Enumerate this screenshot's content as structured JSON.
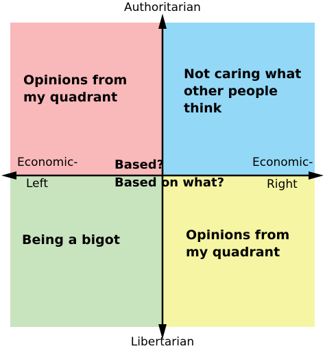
{
  "diagram": {
    "axis_labels": {
      "top": "Authoritarian",
      "bottom": "Libertarian",
      "left_line1": "Economic-",
      "left_line2": "Left",
      "right_line1": "Economic-",
      "right_line2": "Right"
    },
    "quadrants": {
      "top_left": {
        "line1": "Opinions from",
        "line2": "my quadrant",
        "color": "#f9b8b9"
      },
      "top_right": {
        "line1": "Not caring what",
        "line2": "other people",
        "line3": "think",
        "color": "#93d8f7"
      },
      "bottom_left": {
        "line1": "Being a bigot",
        "color": "#c8e4bf"
      },
      "bottom_right": {
        "line1": "Opinions from",
        "line2": "my quadrant",
        "color": "#f5f5a3"
      }
    },
    "center": {
      "line1": "Based?",
      "line2": "Based on what?"
    },
    "axis_color": "#000000"
  }
}
